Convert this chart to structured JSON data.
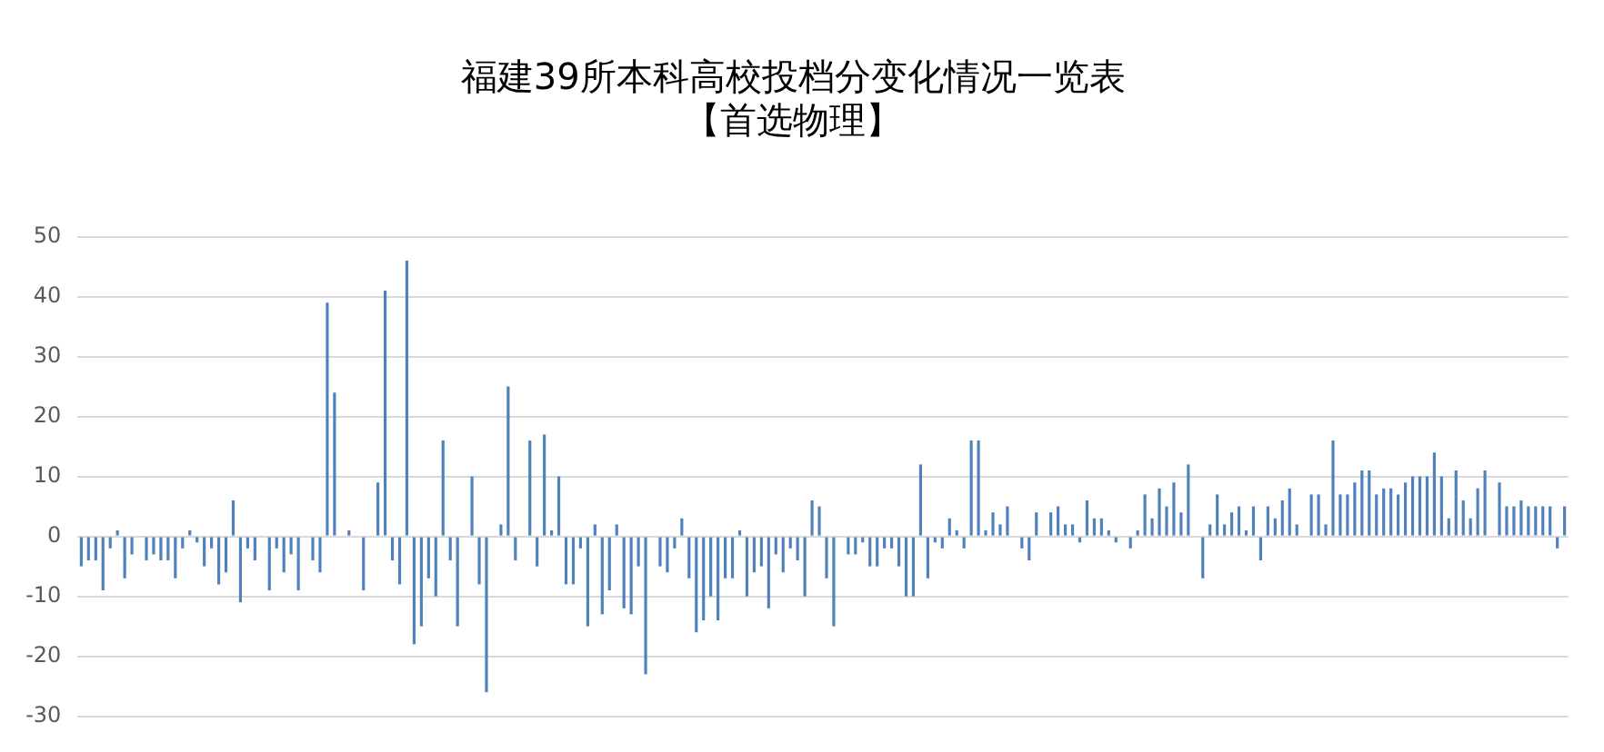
{
  "chart_data": {
    "type": "bar",
    "title": "福建39所本科高校投档分变化情况一览表",
    "subtitle": "【首选物理】",
    "categories": [
      null,
      null,
      null,
      null,
      null,
      null,
      null,
      null,
      null,
      null,
      null,
      null,
      null,
      null,
      null,
      null,
      null,
      null,
      null,
      null,
      null,
      null,
      null,
      null,
      null,
      null,
      null,
      null,
      null,
      null,
      null,
      null,
      null,
      null,
      null,
      null,
      null,
      null,
      null,
      null,
      null,
      null,
      null,
      null,
      null,
      null,
      null,
      null,
      null,
      null,
      null,
      null,
      null,
      null,
      null,
      null,
      null,
      null,
      null,
      null,
      null,
      null,
      null,
      null,
      null,
      null,
      null,
      null,
      null,
      null,
      null,
      null,
      null,
      null,
      null,
      null,
      null,
      null,
      null,
      null,
      null,
      null,
      null,
      null,
      null,
      null,
      null,
      null,
      null,
      null,
      null,
      null,
      null,
      null,
      null,
      null,
      null,
      null,
      null,
      null,
      null,
      null,
      null,
      null,
      null,
      null,
      null,
      null,
      null,
      null,
      null,
      null,
      null,
      null,
      null,
      null,
      null,
      null,
      null,
      null,
      null,
      null,
      null,
      null,
      null,
      null,
      null,
      null,
      null,
      null,
      null,
      null,
      null,
      null,
      null,
      null,
      null,
      null,
      null,
      null,
      null,
      null,
      null,
      null,
      null,
      null,
      null,
      null,
      null,
      null,
      null,
      null,
      null,
      null,
      null,
      null,
      null,
      null,
      null,
      null,
      null,
      null,
      null,
      null,
      null,
      null,
      null,
      null,
      null,
      null,
      null,
      null,
      null,
      null,
      null,
      null,
      null,
      null,
      null,
      null,
      null,
      null,
      null,
      null,
      null,
      null,
      null,
      null,
      null,
      null,
      null,
      null,
      null,
      null,
      null,
      null,
      null,
      null,
      null,
      null,
      null,
      null,
      null,
      null,
      null,
      null
    ],
    "values": [
      -5,
      -4,
      -4,
      -9,
      -2,
      1,
      -7,
      -3,
      0,
      -4,
      -3,
      -4,
      -4,
      -7,
      -2,
      1,
      -1,
      -5,
      -2,
      -8,
      -6,
      6,
      -11,
      -2,
      -4,
      0,
      -9,
      -2,
      -6,
      -3,
      -9,
      0,
      -4,
      -6,
      39,
      24,
      0,
      1,
      0,
      -9,
      0,
      9,
      41,
      -4,
      -8,
      46,
      -18,
      -15,
      -7,
      -10,
      16,
      -4,
      -15,
      0,
      10,
      -8,
      -26,
      0,
      2,
      25,
      -4,
      0,
      16,
      -5,
      17,
      1,
      10,
      -8,
      -8,
      -2,
      -15,
      2,
      -13,
      -9,
      2,
      -12,
      -13,
      -5,
      -23,
      0,
      -5,
      -6,
      -2,
      3,
      -7,
      -16,
      -14,
      -10,
      -14,
      -7,
      -7,
      1,
      -10,
      -6,
      -5,
      -12,
      -3,
      -6,
      -2,
      -4,
      -10,
      6,
      5,
      -7,
      -15,
      0,
      -3,
      -3,
      -1,
      -5,
      -5,
      -2,
      -2,
      -5,
      -10,
      -10,
      12,
      -7,
      -1,
      -2,
      3,
      1,
      -2,
      16,
      16,
      1,
      4,
      2,
      5,
      0,
      -2,
      -4,
      4,
      0,
      4,
      5,
      2,
      2,
      -1,
      6,
      3,
      3,
      1,
      -1,
      0,
      -2,
      1,
      7,
      3,
      8,
      5,
      9,
      4,
      12,
      0,
      -7,
      2,
      7,
      2,
      4,
      5,
      1,
      5,
      -4,
      5,
      3,
      6,
      8,
      2,
      0,
      7,
      7,
      2,
      16,
      7,
      7,
      9,
      11,
      11,
      7,
      8,
      8,
      7,
      9,
      10,
      10,
      10,
      14,
      10,
      3,
      11,
      6,
      3,
      8,
      11,
      0,
      9,
      5,
      5,
      6,
      5,
      5,
      5,
      5,
      -2,
      5
    ],
    "color": "#4f81bd",
    "ylim": [
      -30,
      50
    ],
    "yticks": [
      -30,
      -20,
      -10,
      0,
      10,
      20,
      30,
      40,
      50
    ],
    "grid": "y",
    "tick_labels": "y"
  }
}
